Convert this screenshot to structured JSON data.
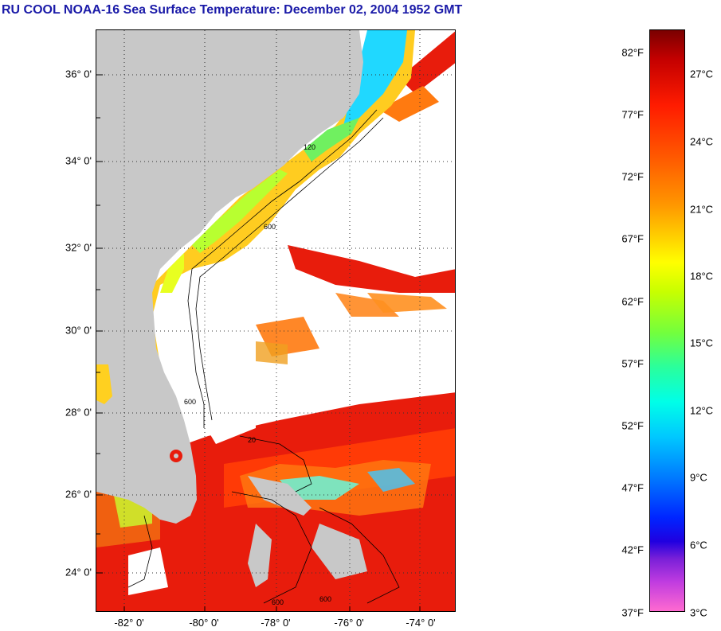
{
  "title": "RU COOL  NOAA-16  Sea Surface Temperature:  December 02, 2004 1952 GMT",
  "map": {
    "lat_labels": [
      "36° 0'",
      "34° 0'",
      "32° 0'",
      "30° 0'",
      "28° 0'",
      "26° 0'",
      "24° 0'"
    ],
    "lon_labels": [
      "-82° 0'",
      "-80° 0'",
      "-78° 0'",
      "-76° 0'",
      "-74° 0'"
    ],
    "contour_labels": [
      "600",
      "120",
      "600",
      "20",
      "600",
      "600"
    ],
    "colors": {
      "land": "#c8c8c8",
      "cloud": "#ffffff",
      "gulf_stream": "#e81c0c",
      "coastal_cold": "#28e0ff"
    }
  },
  "colorbar": {
    "fahrenheit": [
      "82°F",
      "77°F",
      "72°F",
      "67°F",
      "62°F",
      "57°F",
      "52°F",
      "47°F",
      "42°F",
      "37°F"
    ],
    "celsius": [
      "27°C",
      "24°C",
      "21°C",
      "18°C",
      "15°C",
      "12°C",
      "9°C",
      "6°C",
      "3°C"
    ]
  }
}
